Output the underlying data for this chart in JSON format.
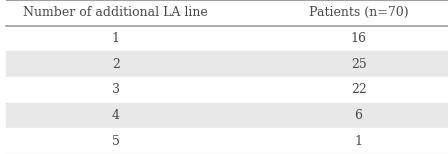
{
  "col_headers": [
    "Number of additional LA line",
    "Patients (n=70)"
  ],
  "rows": [
    [
      "1",
      "16"
    ],
    [
      "2",
      "25"
    ],
    [
      "3",
      "22"
    ],
    [
      "4",
      "6"
    ],
    [
      "5",
      "1"
    ]
  ],
  "header_bg": "#ffffff",
  "row_bg_odd": "#ffffff",
  "row_bg_even": "#e8e8e8",
  "border_color": "#a0a0a0",
  "header_text_color": "#4a4a4a",
  "cell_text_color": "#4a4a4a",
  "header_font_size": 9.0,
  "cell_font_size": 9.0,
  "fig_width": 4.48,
  "fig_height": 1.54,
  "dpi": 100
}
